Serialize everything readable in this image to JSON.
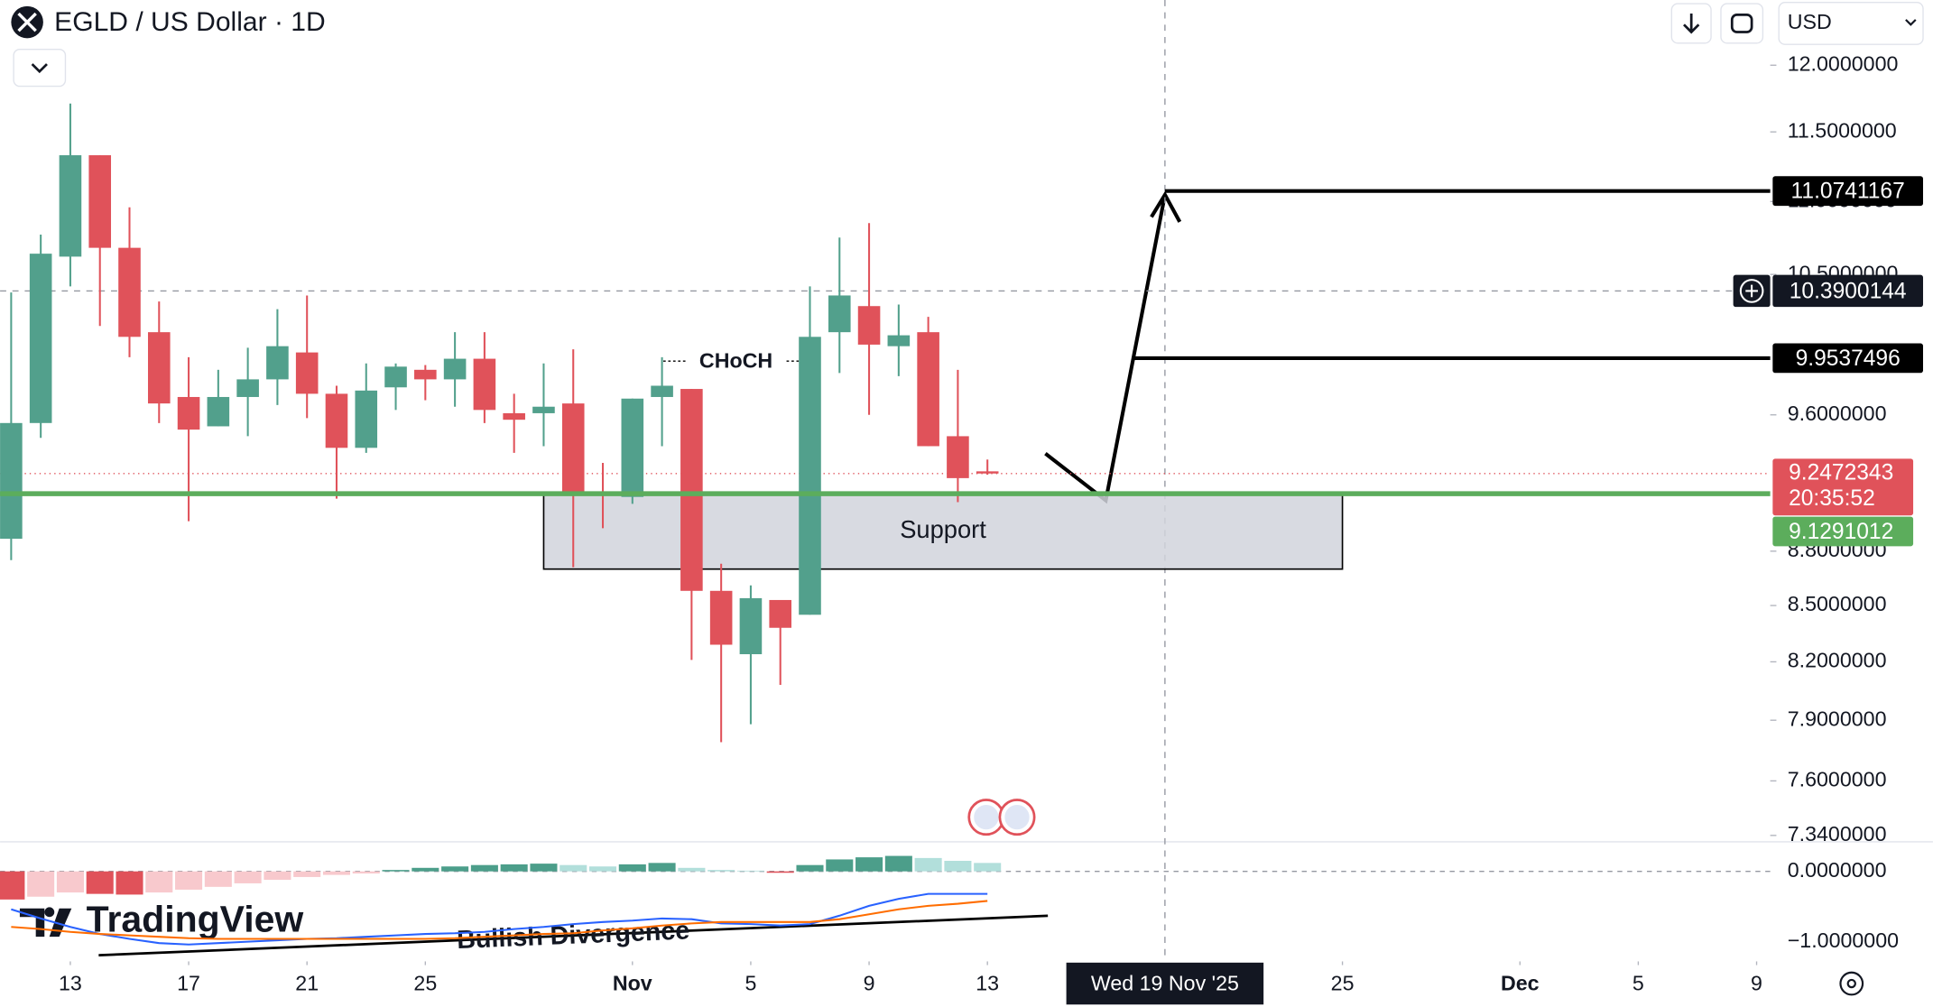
{
  "header": {
    "symbol": "EGLD / US Dollar · 1D",
    "currency": "USD"
  },
  "chart_data": [
    {
      "type": "candlestick",
      "open": [
        8.87,
        9.55,
        10.62,
        11.33,
        10.68,
        10.12,
        9.71,
        9.53,
        9.71,
        9.82,
        9.99,
        9.73,
        9.4,
        9.77,
        9.88,
        9.82,
        9.95,
        9.61,
        9.61,
        9.67,
        9.13,
        9.11,
        9.71,
        9.76,
        8.58,
        8.24,
        8.53,
        8.45,
        10.12,
        10.29,
        10.03,
        10.12,
        9.47,
        9.26
      ],
      "high": [
        10.38,
        10.77,
        11.71,
        11.33,
        10.96,
        10.32,
        9.96,
        9.88,
        10.02,
        10.27,
        10.36,
        9.78,
        9.92,
        9.92,
        9.91,
        10.12,
        10.12,
        9.73,
        9.92,
        10.01,
        9.31,
        9.7,
        9.96,
        9.76,
        8.73,
        8.61,
        8.53,
        10.42,
        10.75,
        10.85,
        10.3,
        10.22,
        9.88,
        9.33
      ],
      "low": [
        8.75,
        9.46,
        10.42,
        10.16,
        9.96,
        9.55,
        8.97,
        9.53,
        9.47,
        9.66,
        9.58,
        9.1,
        9.37,
        9.63,
        9.69,
        9.65,
        9.55,
        9.37,
        9.41,
        8.71,
        8.93,
        9.07,
        9.41,
        8.21,
        7.79,
        7.88,
        8.08,
        8.45,
        9.86,
        9.6,
        9.84,
        9.41,
        9.08,
        9.24
      ],
      "close": [
        9.55,
        10.64,
        11.33,
        10.68,
        10.09,
        9.67,
        9.51,
        9.71,
        9.82,
        10.03,
        9.73,
        9.4,
        9.75,
        9.9,
        9.82,
        9.95,
        9.63,
        9.57,
        9.65,
        9.12,
        9.12,
        9.7,
        9.78,
        8.58,
        8.29,
        8.54,
        8.38,
        10.09,
        10.36,
        10.04,
        10.1,
        9.41,
        9.22,
        9.2472343
      ],
      "up_color": "#52a08c",
      "down_color": "#e0525a",
      "log_scale": true,
      "ylim": [
        7.31,
        12.51
      ],
      "yticks": [
        {
          "value": 12,
          "label": "12.0000000"
        },
        {
          "value": 11.5,
          "label": "11.5000000"
        },
        {
          "value": 11,
          "label": "11.0000000"
        },
        {
          "value": 10.5,
          "label": "10.5000000"
        },
        {
          "value": 9.6,
          "label": "9.6000000"
        },
        {
          "value": 8.8,
          "label": "8.8000000"
        },
        {
          "value": 8.5,
          "label": "8.5000000"
        },
        {
          "value": 8.2,
          "label": "8.2000000"
        },
        {
          "value": 7.9,
          "label": "7.9000000"
        },
        {
          "value": 7.6,
          "label": "7.6000000"
        },
        {
          "value": 7.34,
          "label": "7.3400000"
        }
      ],
      "xlim": [
        -0.375,
        59.46
      ],
      "xticks": [
        {
          "value": 2,
          "label": "13"
        },
        {
          "value": 6,
          "label": "17"
        },
        {
          "value": 10,
          "label": "21"
        },
        {
          "value": 14,
          "label": "25"
        },
        {
          "value": 21,
          "label": "Nov"
        },
        {
          "value": 25,
          "label": "5"
        },
        {
          "value": 29,
          "label": "9"
        },
        {
          "value": 33,
          "label": "13"
        },
        {
          "value": 45,
          "label": "25"
        },
        {
          "value": 51,
          "label": "Dec"
        },
        {
          "value": 55,
          "label": "5"
        },
        {
          "value": 59,
          "label": "9"
        }
      ],
      "crosshair": {
        "x": {
          "value": 39,
          "label": "Wed 19 Nov '25"
        },
        "y": 10.3900144
      },
      "last_price": 9.2472343,
      "last_price_color": "#e0525a",
      "countdown": "20:35:52",
      "levels": [
        {
          "value": 11.0741167,
          "color": "#000000"
        },
        {
          "value": 9.9537496,
          "color": "#000000"
        }
      ],
      "support": {
        "value": 9.1291012,
        "color": "#5cad5c",
        "label": "Support",
        "bottom": 8.7,
        "start": 18,
        "end": 45
      },
      "annotations": [
        "CHoCH",
        "Bullish Divergence"
      ]
    },
    {
      "type": "macd",
      "histogram": [
        -0.4,
        -0.36,
        -0.3,
        -0.32,
        -0.33,
        -0.3,
        -0.26,
        -0.22,
        -0.17,
        -0.12,
        -0.08,
        -0.05,
        -0.03,
        0.02,
        0.05,
        0.07,
        0.09,
        0.1,
        0.11,
        0.09,
        0.07,
        0.1,
        0.12,
        0.05,
        0.02,
        0.01,
        -0.02,
        0.09,
        0.17,
        0.2,
        0.22,
        0.19,
        0.15,
        0.12
      ],
      "macd": [
        -0.54,
        -0.67,
        -0.79,
        -0.89,
        -0.96,
        -1.02,
        -1.04,
        -1.02,
        -1.0,
        -0.98,
        -0.96,
        -0.95,
        -0.93,
        -0.91,
        -0.89,
        -0.88,
        -0.86,
        -0.82,
        -0.79,
        -0.75,
        -0.72,
        -0.7,
        -0.67,
        -0.68,
        -0.74,
        -0.75,
        -0.77,
        -0.75,
        -0.63,
        -0.49,
        -0.39,
        -0.32,
        -0.32,
        -0.32
      ],
      "signal": [
        -0.79,
        -0.82,
        -0.86,
        -0.89,
        -0.91,
        -0.93,
        -0.95,
        -0.96,
        -0.96,
        -0.96,
        -0.96,
        -0.96,
        -0.96,
        -0.96,
        -0.96,
        -0.95,
        -0.93,
        -0.91,
        -0.89,
        -0.88,
        -0.84,
        -0.81,
        -0.77,
        -0.74,
        -0.72,
        -0.72,
        -0.72,
        -0.72,
        -0.68,
        -0.61,
        -0.54,
        -0.49,
        -0.46,
        -0.42
      ],
      "macd_color": "#2962ff",
      "signal_color": "#ff6d00",
      "hist_colors": {
        "up_strong": "#4c9e8a",
        "up_pale": "#b2dfdb",
        "down_strong": "#e0525a",
        "down_pale": "#f8c9cd"
      },
      "ylim": [
        -1.28,
        0.42
      ],
      "yticks": [
        {
          "value": 0,
          "label": "0.0000000"
        },
        {
          "value": -1,
          "label": "−1.0000000"
        }
      ]
    }
  ],
  "watermark": "TradingView"
}
